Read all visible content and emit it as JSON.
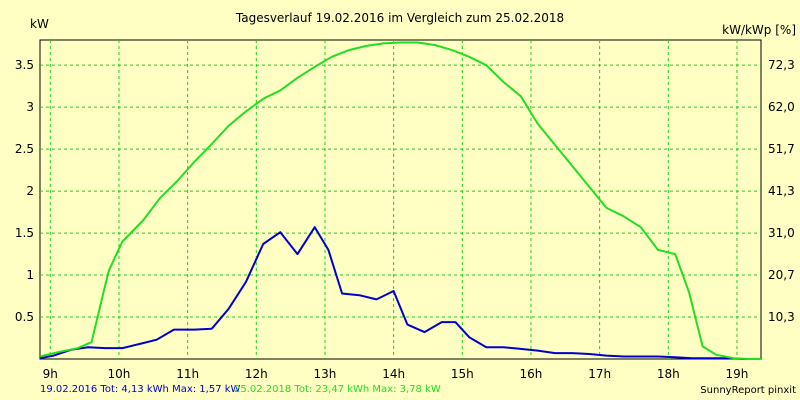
{
  "chart_data": {
    "type": "line",
    "title": "Tagesverlauf 19.02.2016 im Vergleich zum 25.02.2018",
    "ylabel_left": "kW",
    "ylabel_right": "kW/kWp [%]",
    "xlim": [
      8.85,
      19.35
    ],
    "ylim": [
      0,
      3.8
    ],
    "x_ticks": [
      {
        "v": 9,
        "label": "9h"
      },
      {
        "v": 10,
        "label": "10h"
      },
      {
        "v": 11,
        "label": "11h"
      },
      {
        "v": 12,
        "label": "12h"
      },
      {
        "v": 13,
        "label": "13h"
      },
      {
        "v": 14,
        "label": "14h"
      },
      {
        "v": 15,
        "label": "15h"
      },
      {
        "v": 16,
        "label": "16h"
      },
      {
        "v": 17,
        "label": "17h"
      },
      {
        "v": 18,
        "label": "18h"
      },
      {
        "v": 19,
        "label": "19h"
      }
    ],
    "y_ticks_left": [
      {
        "v": 0.5,
        "label": "0.5"
      },
      {
        "v": 1,
        "label": "1"
      },
      {
        "v": 1.5,
        "label": "1.5"
      },
      {
        "v": 2,
        "label": "2"
      },
      {
        "v": 2.5,
        "label": "2.5"
      },
      {
        "v": 3,
        "label": "3"
      },
      {
        "v": 3.5,
        "label": "3.5"
      }
    ],
    "y_ticks_right": [
      {
        "v": 0.5,
        "label": "10,3"
      },
      {
        "v": 1,
        "label": "20,7"
      },
      {
        "v": 1.5,
        "label": "31,0"
      },
      {
        "v": 2,
        "label": "41,3"
      },
      {
        "v": 2.5,
        "label": "51,7"
      },
      {
        "v": 3,
        "label": "62,0"
      },
      {
        "v": 3.5,
        "label": "72,3"
      }
    ],
    "grid": true,
    "series": [
      {
        "name": "19.02.2016",
        "color": "#0000cc",
        "x": [
          8.85,
          9.05,
          9.3,
          9.55,
          9.8,
          10.05,
          10.35,
          10.55,
          10.8,
          11.1,
          11.35,
          11.6,
          11.85,
          12.1,
          12.35,
          12.6,
          12.85,
          13.05,
          13.25,
          13.5,
          13.75,
          14.0,
          14.2,
          14.45,
          14.7,
          14.9,
          15.1,
          15.35,
          15.6,
          15.85,
          16.1,
          16.35,
          16.6,
          16.85,
          17.1,
          17.35,
          17.6,
          17.85,
          18.1,
          18.35,
          18.6,
          18.85,
          19.1,
          19.35
        ],
        "y": [
          0.01,
          0.04,
          0.11,
          0.14,
          0.13,
          0.13,
          0.19,
          0.23,
          0.35,
          0.35,
          0.36,
          0.6,
          0.92,
          1.37,
          1.51,
          1.25,
          1.57,
          1.3,
          0.78,
          0.76,
          0.71,
          0.81,
          0.41,
          0.32,
          0.44,
          0.44,
          0.26,
          0.14,
          0.14,
          0.12,
          0.1,
          0.07,
          0.07,
          0.06,
          0.04,
          0.03,
          0.03,
          0.03,
          0.02,
          0.01,
          0.01,
          0.01,
          0.0,
          0.0
        ]
      },
      {
        "name": "25.02.2018",
        "color": "#22dd22",
        "x": [
          8.85,
          9.1,
          9.4,
          9.6,
          9.85,
          10.05,
          10.35,
          10.6,
          10.85,
          11.1,
          11.35,
          11.6,
          11.85,
          12.1,
          12.35,
          12.6,
          12.85,
          13.1,
          13.35,
          13.6,
          13.85,
          14.1,
          14.35,
          14.6,
          14.85,
          15.1,
          15.35,
          15.6,
          15.85,
          16.1,
          16.35,
          16.6,
          16.85,
          17.1,
          17.35,
          17.6,
          17.85,
          18.1,
          18.3,
          18.5,
          18.7,
          18.95,
          19.15,
          19.35
        ],
        "y": [
          0.03,
          0.08,
          0.13,
          0.2,
          1.05,
          1.4,
          1.65,
          1.92,
          2.12,
          2.35,
          2.56,
          2.78,
          2.95,
          3.1,
          3.2,
          3.35,
          3.48,
          3.6,
          3.68,
          3.73,
          3.76,
          3.77,
          3.77,
          3.74,
          3.68,
          3.6,
          3.5,
          3.3,
          3.13,
          2.8,
          2.55,
          2.3,
          2.05,
          1.8,
          1.7,
          1.57,
          1.3,
          1.25,
          0.8,
          0.15,
          0.05,
          0.01,
          0.0,
          0.0
        ]
      }
    ]
  },
  "footer": {
    "series1_text": "19.02.2016 Tot: 4,13 kWh Max: 1,57 kW",
    "series2_text": "25.02.2018 Tot: 23,47 kWh Max: 3,78 kW",
    "credit": "SunnyReport pinxit"
  }
}
